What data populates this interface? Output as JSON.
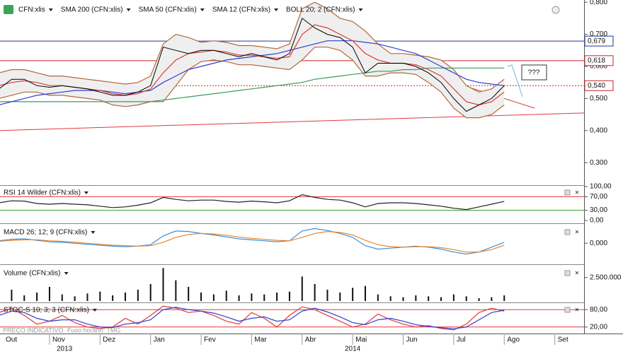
{
  "chart_data": [
    {
      "type": "line",
      "x": [
        0,
        0.25,
        0.5,
        0.75,
        1,
        1.25,
        1.5,
        1.75,
        2,
        2.25,
        2.5,
        2.75,
        3,
        3.25,
        3.5,
        3.75,
        4,
        4.25,
        4.5,
        4.75,
        5,
        5.25,
        5.5,
        5.75,
        6,
        6.25,
        6.5,
        6.75,
        7,
        7.25,
        7.5,
        7.75,
        8,
        8.25,
        8.5,
        8.75,
        9,
        9.25,
        9.5,
        9.75,
        10
      ],
      "xlim": [
        0.02,
        11.58
      ],
      "xticks": [
        {
          "value": 0,
          "label": "Out"
        },
        {
          "value": 1,
          "label": "Nov"
        },
        {
          "value": 2,
          "label": "Dez"
        },
        {
          "value": 3,
          "label": "Jan"
        },
        {
          "value": 4,
          "label": "Fev"
        },
        {
          "value": 5,
          "label": "Mar"
        },
        {
          "value": 6,
          "label": "Abr"
        },
        {
          "value": 7,
          "label": "Mai"
        },
        {
          "value": 8,
          "label": "Jun"
        },
        {
          "value": 9,
          "label": "Jul"
        },
        {
          "value": 10,
          "label": "Ago"
        },
        {
          "value": 11,
          "label": "Set"
        }
      ],
      "year_labels": [
        "2013",
        "2014"
      ],
      "ylim": [
        0.23,
        0.807
      ],
      "yticks": [
        {
          "value": 0.3,
          "label": "0,300"
        },
        {
          "value": 0.4,
          "label": "0,400"
        },
        {
          "value": 0.5,
          "label": "0,500"
        },
        {
          "value": 0.6,
          "label": "0,600"
        },
        {
          "value": 0.7,
          "label": "0,700"
        },
        {
          "value": 0.8,
          "label": "0,800"
        }
      ],
      "series": [
        {
          "name": "CFN:xlis",
          "color": "#000000",
          "values": [
            0.53,
            0.56,
            0.56,
            0.54,
            0.535,
            0.54,
            0.535,
            0.53,
            0.52,
            0.51,
            0.51,
            0.52,
            0.54,
            0.66,
            0.65,
            0.64,
            0.65,
            0.65,
            0.64,
            0.63,
            0.64,
            0.63,
            0.62,
            0.64,
            0.75,
            0.72,
            0.7,
            0.69,
            0.66,
            0.58,
            0.61,
            0.61,
            0.61,
            0.6,
            0.58,
            0.55,
            0.5,
            0.46,
            0.48,
            0.5,
            0.54
          ]
        },
        {
          "name": "SMA 200 (CFN:xlis)",
          "color": "#3a9a5b",
          "values": [
            0.49,
            0.49,
            0.49,
            0.49,
            0.49,
            0.49,
            0.49,
            0.49,
            0.49,
            0.49,
            0.49,
            0.49,
            0.49,
            0.495,
            0.5,
            0.505,
            0.51,
            0.515,
            0.52,
            0.525,
            0.53,
            0.535,
            0.54,
            0.545,
            0.55,
            0.56,
            0.565,
            0.57,
            0.575,
            0.58,
            0.585,
            0.585,
            0.59,
            0.59,
            0.595,
            0.595,
            0.595,
            0.595,
            0.595,
            0.595,
            0.595
          ]
        },
        {
          "name": "SMA 50 (CFN:xlis)",
          "color": "#2f3fd0",
          "values": [
            0.48,
            0.49,
            0.5,
            0.51,
            0.515,
            0.52,
            0.525,
            0.525,
            0.525,
            0.52,
            0.515,
            0.52,
            0.525,
            0.55,
            0.57,
            0.59,
            0.6,
            0.61,
            0.62,
            0.625,
            0.63,
            0.635,
            0.64,
            0.65,
            0.66,
            0.67,
            0.68,
            0.68,
            0.68,
            0.675,
            0.67,
            0.66,
            0.65,
            0.64,
            0.62,
            0.6,
            0.58,
            0.56,
            0.55,
            0.545,
            0.54
          ]
        },
        {
          "name": "SMA 12 (CFN:xlis)",
          "color": "#e03a3a",
          "values": [
            0.54,
            0.55,
            0.555,
            0.55,
            0.54,
            0.54,
            0.535,
            0.53,
            0.525,
            0.515,
            0.51,
            0.515,
            0.53,
            0.58,
            0.62,
            0.64,
            0.645,
            0.65,
            0.645,
            0.635,
            0.635,
            0.63,
            0.625,
            0.63,
            0.7,
            0.73,
            0.72,
            0.7,
            0.68,
            0.64,
            0.62,
            0.61,
            0.61,
            0.605,
            0.59,
            0.57,
            0.53,
            0.49,
            0.48,
            0.49,
            0.52
          ]
        },
        {
          "name": "BOLL 20; 2 (CFN:xlis)",
          "color": "#b0683c",
          "upper": [
            0.58,
            0.59,
            0.59,
            0.58,
            0.57,
            0.57,
            0.565,
            0.56,
            0.555,
            0.55,
            0.545,
            0.55,
            0.57,
            0.67,
            0.7,
            0.69,
            0.675,
            0.68,
            0.675,
            0.665,
            0.665,
            0.66,
            0.655,
            0.67,
            0.78,
            0.8,
            0.78,
            0.75,
            0.74,
            0.71,
            0.67,
            0.64,
            0.64,
            0.635,
            0.63,
            0.62,
            0.59,
            0.54,
            0.52,
            0.53,
            0.56
          ],
          "lower": [
            0.5,
            0.51,
            0.52,
            0.52,
            0.51,
            0.51,
            0.505,
            0.5,
            0.495,
            0.48,
            0.475,
            0.48,
            0.49,
            0.49,
            0.54,
            0.59,
            0.615,
            0.62,
            0.615,
            0.605,
            0.605,
            0.6,
            0.595,
            0.59,
            0.62,
            0.66,
            0.66,
            0.65,
            0.62,
            0.57,
            0.57,
            0.58,
            0.58,
            0.575,
            0.55,
            0.52,
            0.47,
            0.44,
            0.44,
            0.45,
            0.48
          ]
        }
      ],
      "price_lines": [
        {
          "value": 0.679,
          "label": "0,679",
          "color": "#1f3a93"
        },
        {
          "value": 0.618,
          "label": "0,618",
          "color": "#d02020"
        },
        {
          "value": 0.54,
          "label": "0,540",
          "color": "#d02020"
        }
      ],
      "trendlines": [
        {
          "x": [
            0,
            11.58
          ],
          "y": [
            0.4,
            0.455
          ],
          "color": "#e03a3a"
        },
        {
          "x": [
            6.0,
            10.6
          ],
          "y": [
            0.7,
            0.47
          ],
          "color": "#e03a3a"
        }
      ],
      "annotation": "???"
    },
    {
      "type": "line",
      "title": "RSI 14 Wilder (CFN:xlis)",
      "ylim": [
        0,
        100
      ],
      "yticks": [
        {
          "value": 0,
          "label": "0,00"
        },
        {
          "value": 30,
          "label": "30,00"
        },
        {
          "value": 70,
          "label": "70,00"
        },
        {
          "value": 100,
          "label": "100,00"
        }
      ],
      "hlines": [
        {
          "value": 70,
          "color": "#e03a3a"
        },
        {
          "value": 30,
          "color": "#2e9e2e"
        }
      ],
      "series": [
        {
          "color": "#222222",
          "values": [
            52,
            58,
            57,
            50,
            48,
            50,
            48,
            46,
            42,
            38,
            40,
            45,
            52,
            68,
            62,
            58,
            60,
            60,
            56,
            54,
            57,
            55,
            52,
            58,
            76,
            68,
            62,
            60,
            52,
            40,
            50,
            52,
            52,
            50,
            46,
            42,
            36,
            32,
            40,
            48,
            56
          ]
        }
      ]
    },
    {
      "type": "line",
      "title": "MACD 26; 12; 9 (CFN:xlis)",
      "ylim": [
        -0.04,
        0.035
      ],
      "yticks": [
        {
          "value": 0,
          "label": "0,000"
        }
      ],
      "series": [
        {
          "color": "#3a8fd8",
          "values": [
            0.005,
            0.008,
            0.009,
            0.006,
            0.003,
            0.002,
            0,
            -0.002,
            -0.004,
            -0.006,
            -0.007,
            -0.006,
            -0.003,
            0.015,
            0.025,
            0.024,
            0.02,
            0.017,
            0.013,
            0.009,
            0.007,
            0.005,
            0.003,
            0.005,
            0.025,
            0.03,
            0.026,
            0.02,
            0.012,
            -0.005,
            -0.012,
            -0.01,
            -0.008,
            -0.006,
            -0.008,
            -0.012,
            -0.018,
            -0.022,
            -0.018,
            -0.008,
            0.002
          ]
        },
        {
          "color": "#e8862e",
          "values": [
            0.004,
            0.006,
            0.007,
            0.007,
            0.005,
            0.004,
            0.002,
            0,
            -0.002,
            -0.004,
            -0.005,
            -0.006,
            -0.005,
            0.002,
            0.012,
            0.018,
            0.02,
            0.019,
            0.016,
            0.013,
            0.01,
            0.008,
            0.006,
            0.005,
            0.012,
            0.02,
            0.024,
            0.022,
            0.017,
            0.006,
            -0.003,
            -0.007,
            -0.008,
            -0.007,
            -0.007,
            -0.009,
            -0.013,
            -0.018,
            -0.018,
            -0.013,
            -0.004
          ]
        }
      ]
    },
    {
      "type": "bar",
      "title": "Volume (CFN:xlis)",
      "ylim": [
        0,
        3600000
      ],
      "color": "#111111",
      "yticks": [
        {
          "value": 2500000,
          "label": "2.500.000"
        }
      ],
      "values": [
        800000,
        1200000,
        600000,
        900000,
        1500000,
        700000,
        500000,
        800000,
        1000000,
        600000,
        900000,
        1200000,
        1800000,
        3500000,
        2200000,
        1500000,
        900000,
        700000,
        1100000,
        600000,
        800000,
        700000,
        900000,
        1000000,
        2600000,
        1800000,
        1200000,
        900000,
        1400000,
        1600000,
        700000,
        500000,
        400000,
        600000,
        500000,
        400000,
        700000,
        500000,
        300000,
        400000,
        600000
      ]
    },
    {
      "type": "line",
      "title": "STOC-S 10; 3; 3 (CFN:xlis)",
      "ylim": [
        0,
        100
      ],
      "yticks": [
        {
          "value": 20,
          "label": "20,00"
        },
        {
          "value": 80,
          "label": "80,00"
        }
      ],
      "hlines": [
        {
          "value": 80,
          "color": "#e03a3a"
        },
        {
          "value": 20,
          "color": "#e03a3a"
        }
      ],
      "series": [
        {
          "color": "#e03a3a",
          "values": [
            70,
            85,
            60,
            30,
            40,
            60,
            35,
            20,
            15,
            20,
            50,
            30,
            60,
            92,
            85,
            70,
            75,
            60,
            40,
            30,
            70,
            50,
            20,
            60,
            90,
            80,
            60,
            40,
            20,
            30,
            65,
            45,
            30,
            20,
            25,
            15,
            10,
            30,
            70,
            85,
            75
          ]
        },
        {
          "color": "#2f3fd0",
          "values": [
            60,
            75,
            70,
            50,
            40,
            45,
            45,
            30,
            20,
            18,
            30,
            35,
            45,
            80,
            88,
            80,
            75,
            68,
            55,
            40,
            50,
            55,
            40,
            45,
            75,
            85,
            72,
            55,
            35,
            28,
            45,
            50,
            40,
            28,
            22,
            18,
            14,
            20,
            45,
            70,
            78
          ]
        }
      ]
    }
  ],
  "footer": {
    "notice": "PREÇO INDICATIVO",
    "timezone": "Fuso horário: TMG"
  }
}
